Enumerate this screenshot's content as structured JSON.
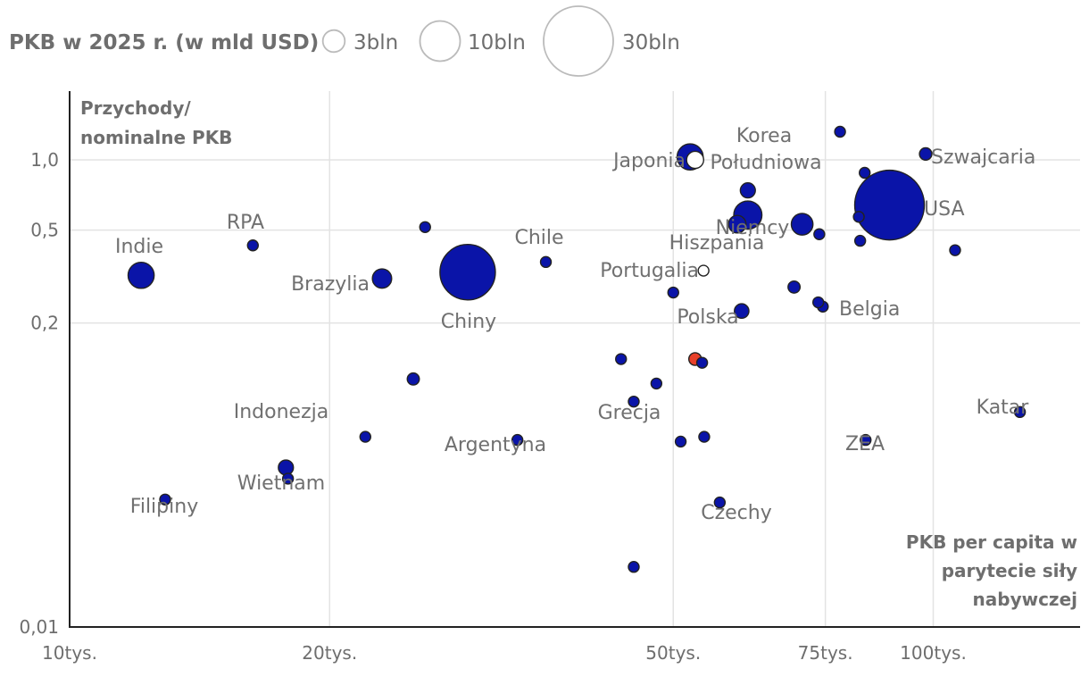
{
  "legend": {
    "title": "PKB w 2025 r. (w mld USD)",
    "items": [
      {
        "label": "3bln",
        "gdp": 3000
      },
      {
        "label": "10bln",
        "gdp": 10000
      },
      {
        "label": "30bln",
        "gdp": 30000
      }
    ]
  },
  "chart_data": {
    "type": "scatter",
    "xlabel": "PKB per capita  w parytecie siły nabywczej",
    "ylabel": "Przychody/ nominalne PKB",
    "x_scale": "log",
    "y_scale": "log",
    "xlim": [
      10000,
      160000
    ],
    "ylim": [
      0.01,
      2
    ],
    "x_ticks": [
      {
        "value": 10000,
        "label": "10tys."
      },
      {
        "value": 20000,
        "label": "20tys."
      },
      {
        "value": 50000,
        "label": "50tys."
      },
      {
        "value": 75000,
        "label": "75tys."
      },
      {
        "value": 100000,
        "label": "100tys."
      }
    ],
    "y_ticks": [
      {
        "value": 0.01,
        "label": "0,01"
      },
      {
        "value": 0.2,
        "label": "0,2"
      },
      {
        "value": 0.5,
        "label": "0,5"
      },
      {
        "value": 1.0,
        "label": "1,0"
      }
    ],
    "colors": {
      "default": "#0a14a8",
      "highlight": "#e8402a",
      "outline": "#222222",
      "hollow": "#ffffff"
    },
    "points": [
      {
        "label": "Indie",
        "x": 12100,
        "y": 0.32,
        "gdp": 4200
      },
      {
        "label": "RPA",
        "x": 16300,
        "y": 0.43,
        "gdp": 420
      },
      {
        "label": "Brazylia",
        "x": 23000,
        "y": 0.31,
        "gdp": 2300
      },
      {
        "label": "Chiny",
        "x": 28900,
        "y": 0.33,
        "gdp": 19000
      },
      {
        "label": "Chile",
        "x": 35600,
        "y": 0.365,
        "gdp": 350
      },
      {
        "label": "Indonezja",
        "x": 17800,
        "y": 0.048,
        "gdp": 1400
      },
      {
        "label": "Wietnam",
        "x": 17900,
        "y": 0.043,
        "gdp": 490
      },
      {
        "label": "Filipiny",
        "x": 12900,
        "y": 0.035,
        "gdp": 500
      },
      {
        "label": "Argentyna",
        "x": 33000,
        "y": 0.063,
        "gdp": 640
      },
      {
        "label": "Grecja",
        "x": 45000,
        "y": 0.092,
        "gdp": 260
      },
      {
        "label": "Polska",
        "x": 53000,
        "y": 0.14,
        "gdp": 980,
        "highlight": true
      },
      {
        "label": "Portugalia",
        "x": 54200,
        "y": 0.335,
        "gdp": 320,
        "hollow": true
      },
      {
        "label": "Japonia",
        "x": 52300,
        "y": 1.03,
        "gdp": 4200
      },
      {
        "label": "Korea Południowa",
        "x": 53000,
        "y": 1.0,
        "gdp": 1800,
        "hollow": true
      },
      {
        "label": "Hiszpania",
        "x": 59300,
        "y": 0.53,
        "gdp": 1900
      },
      {
        "label": "Niemcy",
        "x": 61000,
        "y": 0.58,
        "gdp": 4900
      },
      {
        "label": "Belgia",
        "x": 74500,
        "y": 0.235,
        "gdp": 680
      },
      {
        "label": "Szwajcaria",
        "x": 98000,
        "y": 1.06,
        "gdp": 950
      },
      {
        "label": "USA",
        "x": 89000,
        "y": 0.64,
        "gdp": 30000
      },
      {
        "label": "Czechy",
        "x": 56600,
        "y": 0.034,
        "gdp": 360
      },
      {
        "label": "ZEA",
        "x": 83500,
        "y": 0.063,
        "gdp": 550
      },
      {
        "label": "Katar",
        "x": 126000,
        "y": 0.083,
        "gdp": 230
      },
      {
        "label": "",
        "x": 78000,
        "y": 1.32,
        "gdp": 200
      },
      {
        "label": "",
        "x": 83300,
        "y": 0.88,
        "gdp": 350
      },
      {
        "label": "",
        "x": 61000,
        "y": 0.74,
        "gdp": 1400
      },
      {
        "label": "",
        "x": 70500,
        "y": 0.53,
        "gdp": 2900
      },
      {
        "label": "",
        "x": 73800,
        "y": 0.48,
        "gdp": 600
      },
      {
        "label": "",
        "x": 82000,
        "y": 0.57,
        "gdp": 700
      },
      {
        "label": "",
        "x": 82300,
        "y": 0.45,
        "gdp": 200
      },
      {
        "label": "",
        "x": 106000,
        "y": 0.41,
        "gdp": 280
      },
      {
        "label": "",
        "x": 25800,
        "y": 0.515,
        "gdp": 220
      },
      {
        "label": "",
        "x": 69000,
        "y": 0.285,
        "gdp": 900
      },
      {
        "label": "",
        "x": 73600,
        "y": 0.245,
        "gdp": 420
      },
      {
        "label": "",
        "x": 50000,
        "y": 0.27,
        "gdp": 380
      },
      {
        "label": "",
        "x": 60000,
        "y": 0.225,
        "gdp": 1300
      },
      {
        "label": "",
        "x": 43500,
        "y": 0.14,
        "gdp": 700
      },
      {
        "label": "",
        "x": 54000,
        "y": 0.135,
        "gdp": 250
      },
      {
        "label": "",
        "x": 47800,
        "y": 0.11,
        "gdp": 180
      },
      {
        "label": "",
        "x": 25000,
        "y": 0.115,
        "gdp": 900
      },
      {
        "label": "",
        "x": 22000,
        "y": 0.065,
        "gdp": 250
      },
      {
        "label": "",
        "x": 51000,
        "y": 0.062,
        "gdp": 180
      },
      {
        "label": "",
        "x": 54300,
        "y": 0.065,
        "gdp": 180
      },
      {
        "label": "",
        "x": 45000,
        "y": 0.018,
        "gdp": 200
      }
    ]
  }
}
